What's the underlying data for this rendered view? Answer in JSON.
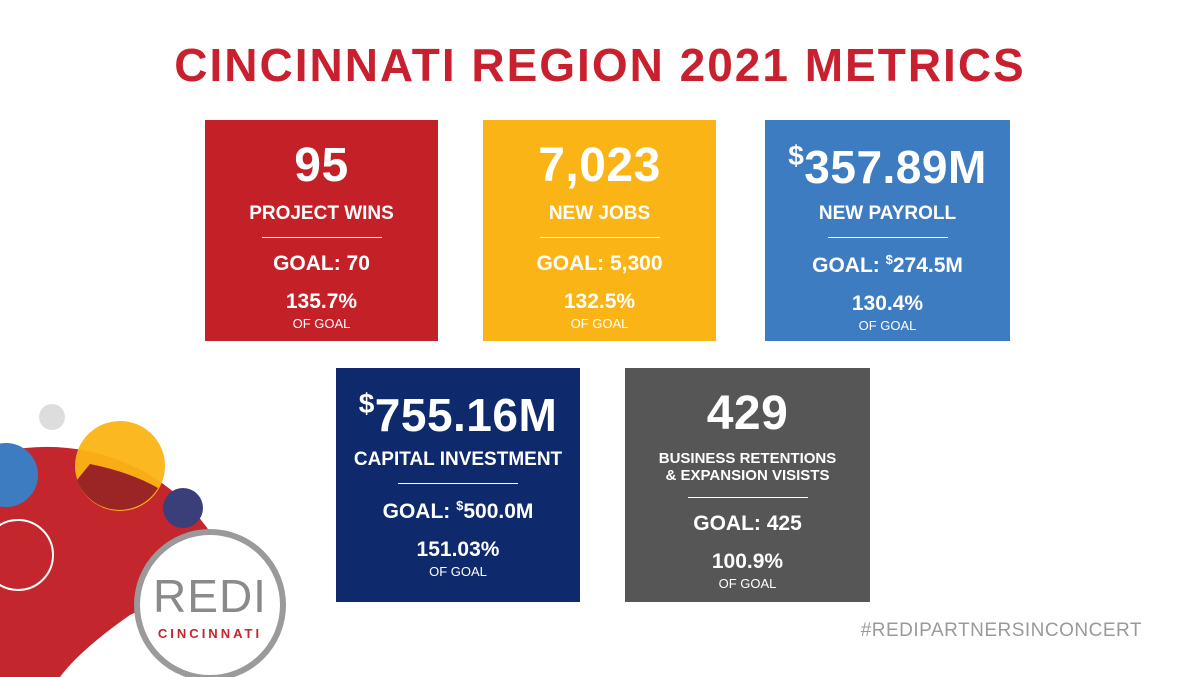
{
  "title": "CINCINNATI REGION 2021 METRICS",
  "colors": {
    "title": "#c8202e",
    "project_wins": "#c32127",
    "new_jobs": "#fbb415",
    "new_payroll": "#3e7cc2",
    "capital_investment": "#0f2a6c",
    "business_retentions": "#565656"
  },
  "cards": {
    "project_wins": {
      "value": "95",
      "label": "PROJECT WINS",
      "goal": "GOAL: 70",
      "percent": "135.7%",
      "of_goal": "OF GOAL"
    },
    "new_jobs": {
      "value": "7,023",
      "label": "NEW JOBS",
      "goal": "GOAL: 5,300",
      "percent": "132.5%",
      "of_goal": "OF GOAL"
    },
    "new_payroll": {
      "currency": "$",
      "value": "357.89M",
      "label": "NEW PAYROLL",
      "goal_prefix": "GOAL: ",
      "goal_currency": "$",
      "goal_value": "274.5M",
      "percent": "130.4%",
      "of_goal": "OF GOAL"
    },
    "capital_investment": {
      "currency": "$",
      "value": "755.16M",
      "label": "CAPITAL INVESTMENT",
      "goal_prefix": "GOAL: ",
      "goal_currency": "$",
      "goal_value": "500.0M",
      "percent": "151.03%",
      "of_goal": "OF GOAL"
    },
    "business_retentions": {
      "value": "429",
      "label_line1": "BUSINESS RETENTIONS",
      "label_line2": "& EXPANSION VISISTS",
      "goal": "GOAL: 425",
      "percent": "100.9%",
      "of_goal": "OF GOAL"
    }
  },
  "logo": {
    "word": "REDI",
    "sub": "CINCINNATI"
  },
  "hashtag": "#REDIPARTNERSINCONCERT"
}
